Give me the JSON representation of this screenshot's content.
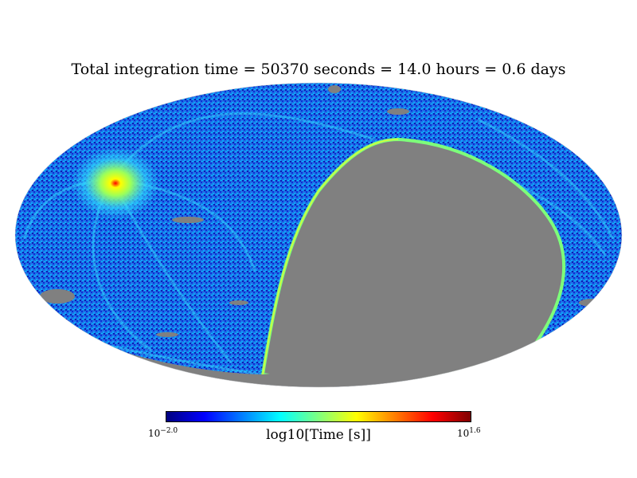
{
  "figure": {
    "title": "Total integration time = 50370 seconds = 14.0 hours = 0.6 days",
    "projection": "mollweide",
    "colormap": "jet",
    "mask_color": "#808080",
    "colorbar": {
      "label": "log10[Time [s]]",
      "min_base": "10",
      "min_exp": "−2.0",
      "max_base": "10",
      "max_exp": "1.6",
      "colors": [
        "#00007f",
        "#0000ff",
        "#007fff",
        "#00ffff",
        "#7fff7f",
        "#ffff00",
        "#ff7f00",
        "#ff0000",
        "#7f0000"
      ]
    }
  }
}
